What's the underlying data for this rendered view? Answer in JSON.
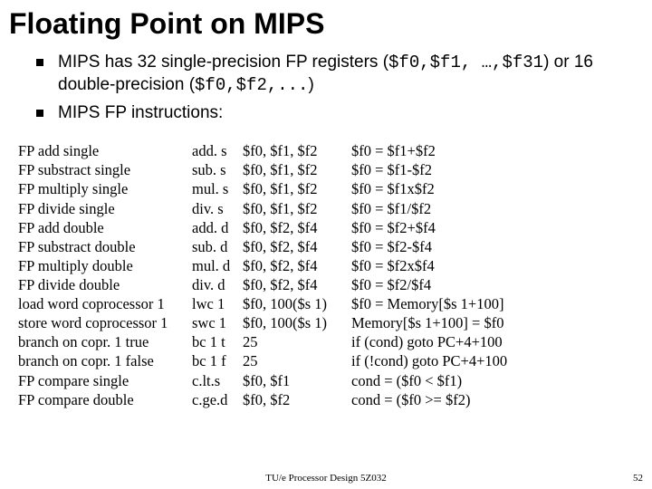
{
  "title": "Floating Point on MIPS",
  "bullets": [
    {
      "pre": "MIPS has 32 single-precision FP registers (",
      "code1": "$f0,$f1, …,$f31",
      "mid": ") or 16 double-precision (",
      "code2": "$f0,$f2,...",
      "post": ")"
    },
    {
      "pre": "MIPS FP instructions:",
      "code1": "",
      "mid": "",
      "code2": "",
      "post": ""
    }
  ],
  "rows": [
    {
      "c0": "FP add single",
      "c1": "add. s",
      "c2": "$f0, $f1, $f2",
      "c3": "$f0 = $f1+$f2"
    },
    {
      "c0": "FP substract single",
      "c1": "sub. s",
      "c2": "$f0, $f1, $f2",
      "c3": "$f0 = $f1-$f2"
    },
    {
      "c0": "FP multiply single",
      "c1": "mul. s",
      "c2": "$f0, $f1, $f2",
      "c3": "$f0 = $f1x$f2"
    },
    {
      "c0": "FP divide single",
      "c1": "div. s",
      "c2": "$f0, $f1, $f2",
      "c3": "$f0 = $f1/$f2"
    },
    {
      "c0": "FP add double",
      "c1": "add. d",
      "c2": "$f0, $f2, $f4",
      "c3": "$f0 = $f2+$f4"
    },
    {
      "c0": "FP substract double",
      "c1": "sub. d",
      "c2": "$f0, $f2, $f4",
      "c3": "$f0 = $f2-$f4"
    },
    {
      "c0": "FP multiply double",
      "c1": "mul. d",
      "c2": "$f0, $f2, $f4",
      "c3": "$f0 = $f2x$f4"
    },
    {
      "c0": "FP divide double",
      "c1": "div. d",
      "c2": "$f0, $f2, $f4",
      "c3": "$f0 = $f2/$f4"
    },
    {
      "c0": "load word coprocessor 1",
      "c1": "lwc 1",
      "c2": "$f0, 100($s 1)",
      "c3": "$f0 = Memory[$s 1+100]"
    },
    {
      "c0": "store word coprocessor 1",
      "c1": "swc 1",
      "c2": "$f0, 100($s 1)",
      "c3": "Memory[$s 1+100] = $f0"
    },
    {
      "c0": "branch on copr. 1 true",
      "c1": "bc 1 t",
      "c2": "25",
      "c3": "if (cond) goto PC+4+100"
    },
    {
      "c0": "branch on copr. 1 false",
      "c1": "bc 1 f",
      "c2": "25",
      "c3": "if (!cond) goto PC+4+100"
    },
    {
      "c0": "FP compare single",
      "c1": "c.lt.s",
      "c2": "$f0, $f1",
      "c3": "cond = ($f0 < $f1)"
    },
    {
      "c0": "FP compare double",
      "c1": "c.ge.d",
      "c2": "$f0, $f2",
      "c3": "cond = ($f0 >= $f2)"
    }
  ],
  "footer": "TU/e Processor Design 5Z032",
  "page": "52"
}
